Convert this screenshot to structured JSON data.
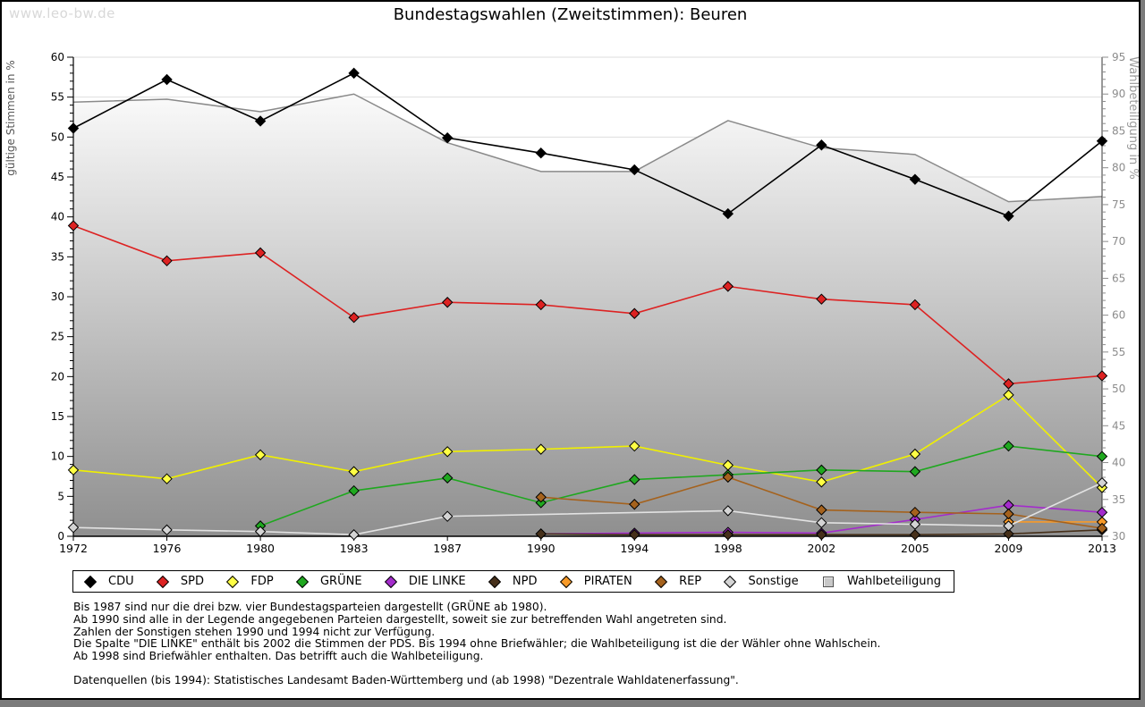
{
  "page": {
    "watermark": "www.leo-bw.de",
    "title": "Bundestagswahlen (Zweitstimmen): Beuren"
  },
  "axes": {
    "y_left_label": "gültige Stimmen in %",
    "y_right_label": "Wahlbeteiligung in %"
  },
  "footer": {
    "lines": [
      "Bis 1987 sind nur die drei bzw. vier Bundestagsparteien dargestellt (GRÜNE ab 1980).",
      "Ab 1990 sind alle in der Legende angegebenen Parteien dargestellt, soweit sie zur betreffenden Wahl angetreten sind.",
      "Zahlen der Sonstigen stehen 1990 und 1994 nicht zur Verfügung.",
      "Die Spalte \"DIE LINKE\" enthält bis 2002 die Stimmen der PDS. Bis 1994 ohne Briefwähler; die Wahlbeteiligung ist die der Wähler ohne Wahlschein.",
      "Ab 1998 sind Briefwähler enthalten. Das betrifft auch die Wahlbeteiligung."
    ],
    "source": "Datenquellen (bis 1994): Statistisches Landesamt Baden-Württemberg und (ab 1998) \"Dezentrale Wahldatenerfassung\"."
  },
  "chart_data": {
    "type": "line",
    "categories": [
      "1972",
      "1976",
      "1980",
      "1983",
      "1987",
      "1990",
      "1994",
      "1998",
      "2002",
      "2005",
      "2009",
      "2013"
    ],
    "y_left": {
      "label": "gültige Stimmen in %",
      "min": 0,
      "max": 60,
      "tick_step": 5
    },
    "y_right": {
      "label": "Wahlbeteiligung in %",
      "min": 30,
      "max": 95,
      "tick_step": 5
    },
    "grid": true,
    "grid_color": "#dedede",
    "legend_position": "bottom",
    "series": [
      {
        "name": "CDU",
        "axis": "left",
        "type": "line",
        "color": "#000000",
        "values": [
          51.1,
          57.2,
          52.0,
          58.0,
          49.9,
          48.0,
          45.9,
          40.4,
          49.0,
          44.7,
          40.1,
          49.5
        ]
      },
      {
        "name": "SPD",
        "axis": "left",
        "type": "line",
        "color": "#dd2222",
        "values": [
          38.9,
          34.5,
          35.5,
          27.4,
          29.3,
          29.0,
          27.9,
          31.3,
          29.7,
          29.0,
          19.1,
          20.1
        ]
      },
      {
        "name": "FDP",
        "axis": "left",
        "type": "line",
        "color": "#f0f000",
        "marker_fill": "#ffff44",
        "values": [
          8.3,
          7.2,
          10.2,
          8.1,
          10.6,
          10.9,
          11.3,
          8.9,
          6.8,
          10.3,
          17.7,
          6.1
        ]
      },
      {
        "name": "GRÜNE",
        "axis": "left",
        "type": "line",
        "color": "#1fa81f",
        "values": [
          null,
          null,
          1.3,
          5.7,
          7.3,
          4.2,
          7.1,
          7.7,
          8.3,
          8.1,
          11.3,
          10.0
        ]
      },
      {
        "name": "DIE LINKE",
        "axis": "left",
        "type": "line",
        "color": "#a42ccc",
        "values": [
          null,
          null,
          null,
          null,
          null,
          0.3,
          0.4,
          0.5,
          0.4,
          2.1,
          3.9,
          3.0
        ]
      },
      {
        "name": "NPD",
        "axis": "left",
        "type": "line",
        "color": "#46301a",
        "values": [
          null,
          null,
          null,
          null,
          null,
          0.3,
          0.2,
          0.2,
          0.2,
          0.2,
          0.3,
          0.8
        ]
      },
      {
        "name": "PIRATEN",
        "axis": "left",
        "type": "line",
        "color": "#f89a28",
        "values": [
          null,
          null,
          null,
          null,
          null,
          null,
          null,
          null,
          null,
          null,
          1.8,
          1.8
        ]
      },
      {
        "name": "REP",
        "axis": "left",
        "type": "line",
        "color": "#a5621d",
        "values": [
          null,
          null,
          null,
          null,
          null,
          4.9,
          4.0,
          7.4,
          3.3,
          3.0,
          2.8,
          1.0
        ]
      },
      {
        "name": "Sonstige",
        "axis": "left",
        "type": "line",
        "color": "#e2e2e2",
        "marker_fill": "#d4d4d4",
        "values": [
          1.1,
          0.8,
          0.6,
          0.2,
          2.5,
          null,
          null,
          3.2,
          1.7,
          1.5,
          1.3,
          6.7
        ]
      },
      {
        "name": "Wahlbeteiligung",
        "axis": "right",
        "type": "area",
        "color": "#8a8a8a",
        "fill_gradient": [
          "#fafafa",
          "#8f8f8f"
        ],
        "legend_marker": "square",
        "values": [
          88.9,
          89.3,
          87.6,
          90.0,
          83.4,
          79.5,
          79.5,
          86.4,
          82.7,
          81.8,
          75.4,
          76.1
        ]
      }
    ]
  }
}
